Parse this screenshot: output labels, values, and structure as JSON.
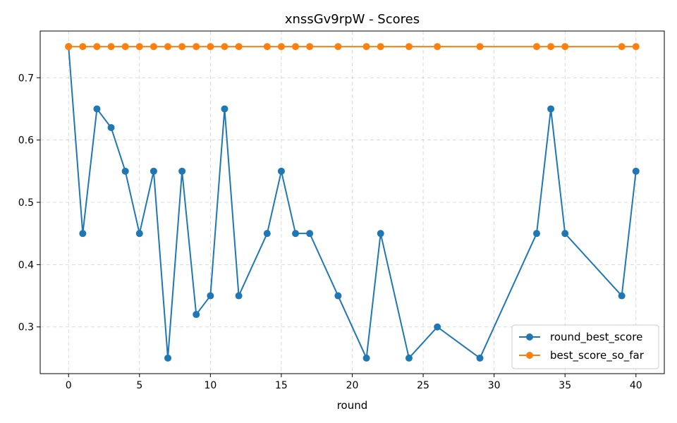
{
  "chart_data": {
    "type": "line",
    "title": "xnssGv9rpW - Scores",
    "xlabel": "round",
    "ylabel": "",
    "xlim": [
      -2,
      42
    ],
    "ylim": [
      0.225,
      0.775
    ],
    "xticks": [
      0,
      5,
      10,
      15,
      20,
      25,
      30,
      35,
      40
    ],
    "yticks": [
      0.3,
      0.4,
      0.5,
      0.6,
      0.7
    ],
    "grid": true,
    "legend_position": "lower-right",
    "x": [
      0,
      1,
      2,
      3,
      4,
      5,
      6,
      7,
      8,
      9,
      10,
      11,
      12,
      14,
      15,
      16,
      17,
      19,
      21,
      22,
      24,
      26,
      29,
      33,
      34,
      35,
      39,
      40
    ],
    "series": [
      {
        "name": "round_best_score",
        "color": "#1f77b4",
        "values": [
          0.75,
          0.45,
          0.65,
          0.62,
          0.55,
          0.45,
          0.55,
          0.25,
          0.55,
          0.32,
          0.35,
          0.65,
          0.35,
          0.45,
          0.55,
          0.45,
          0.45,
          0.35,
          0.25,
          0.45,
          0.25,
          0.3,
          0.25,
          0.45,
          0.65,
          0.45,
          0.35,
          0.55
        ]
      },
      {
        "name": "best_score_so_far",
        "color": "#ff7f0e",
        "values": [
          0.75,
          0.75,
          0.75,
          0.75,
          0.75,
          0.75,
          0.75,
          0.75,
          0.75,
          0.75,
          0.75,
          0.75,
          0.75,
          0.75,
          0.75,
          0.75,
          0.75,
          0.75,
          0.75,
          0.75,
          0.75,
          0.75,
          0.75,
          0.75,
          0.75,
          0.75,
          0.75,
          0.75
        ]
      }
    ]
  }
}
